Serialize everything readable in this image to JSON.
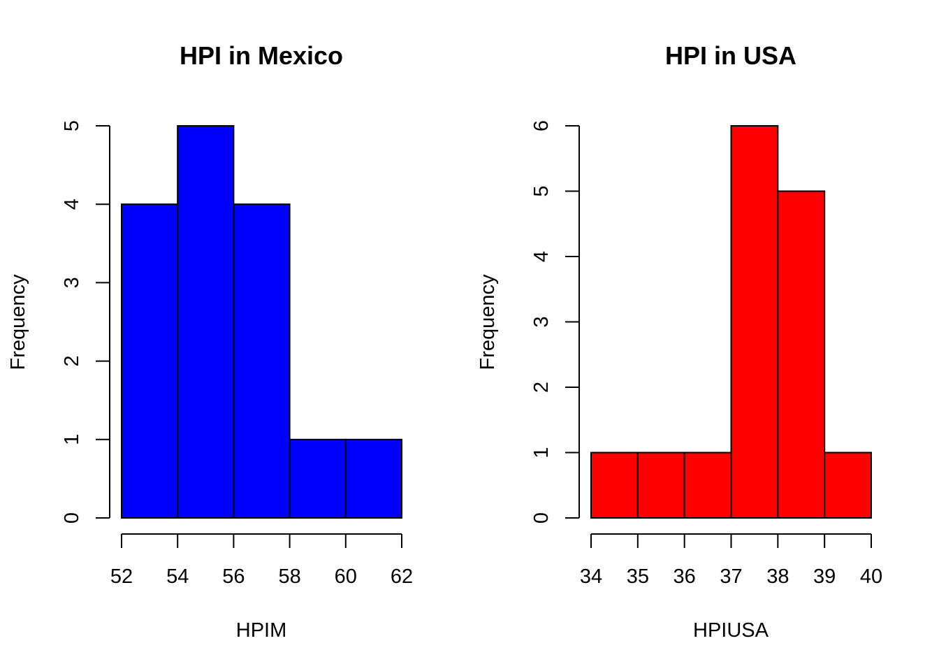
{
  "chart_data": [
    {
      "type": "bar",
      "title": "HPI in Mexico",
      "xlabel": "HPIM",
      "ylabel": "Frequency",
      "bins": [
        {
          "from": 52,
          "to": 54,
          "count": 4
        },
        {
          "from": 54,
          "to": 56,
          "count": 5
        },
        {
          "from": 56,
          "to": 58,
          "count": 4
        },
        {
          "from": 58,
          "to": 60,
          "count": 1
        },
        {
          "from": 60,
          "to": 62,
          "count": 1
        }
      ],
      "xticks": [
        52,
        54,
        56,
        58,
        60,
        62
      ],
      "yticks": [
        0,
        1,
        2,
        3,
        4,
        5
      ],
      "xlim": [
        52,
        62
      ],
      "ylim": [
        0,
        5
      ],
      "color": "#0000ff",
      "grid": false
    },
    {
      "type": "bar",
      "title": "HPI in USA",
      "xlabel": "HPIUSA",
      "ylabel": "Frequency",
      "bins": [
        {
          "from": 34,
          "to": 35,
          "count": 1
        },
        {
          "from": 35,
          "to": 36,
          "count": 1
        },
        {
          "from": 36,
          "to": 37,
          "count": 1
        },
        {
          "from": 37,
          "to": 38,
          "count": 6
        },
        {
          "from": 38,
          "to": 39,
          "count": 5
        },
        {
          "from": 39,
          "to": 40,
          "count": 1
        }
      ],
      "xticks": [
        34,
        35,
        36,
        37,
        38,
        39,
        40
      ],
      "yticks": [
        0,
        1,
        2,
        3,
        4,
        5,
        6
      ],
      "xlim": [
        34,
        40
      ],
      "ylim": [
        0,
        6
      ],
      "color": "#ff0000",
      "grid": false
    }
  ]
}
